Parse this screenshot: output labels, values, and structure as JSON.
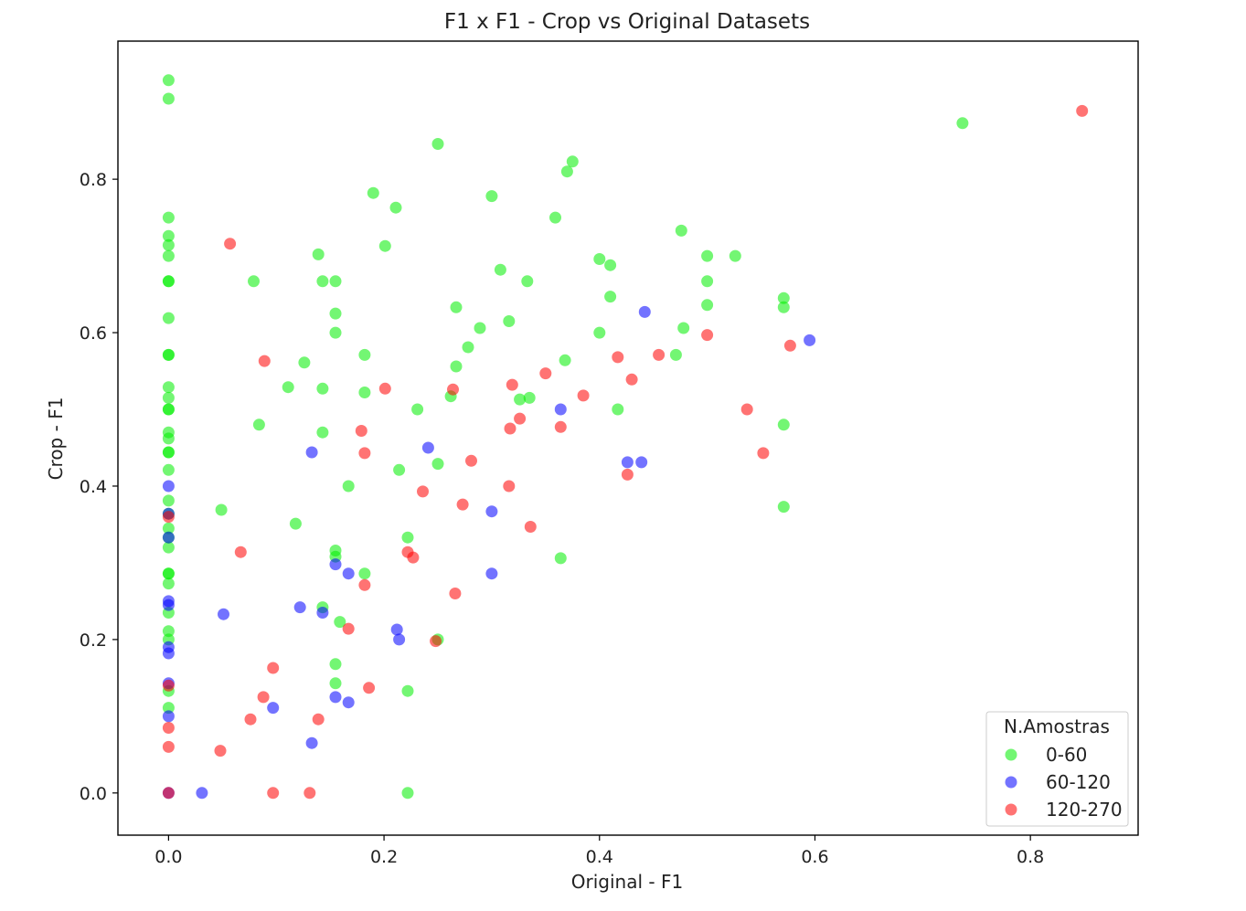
{
  "chart_data": {
    "type": "scatter",
    "title": "F1 x F1 - Crop vs Original Datasets",
    "xlabel": "Original - F1",
    "ylabel": "Crop - F1",
    "xlim": [
      -0.047,
      0.9
    ],
    "ylim": [
      -0.055,
      0.98
    ],
    "xticks": [
      "0.0",
      "0.2",
      "0.4",
      "0.6",
      "0.8"
    ],
    "yticks": [
      "0.0",
      "0.2",
      "0.4",
      "0.6",
      "0.8"
    ],
    "grid": false,
    "legend": {
      "title": "N.Amostras",
      "position": "lower-right"
    },
    "marker_opacity": 0.55,
    "series": [
      {
        "name": "0-60",
        "color": "#00ee00",
        "points": [
          [
            0.0,
            0.929
          ],
          [
            0.0,
            0.905
          ],
          [
            0.0,
            0.75
          ],
          [
            0.0,
            0.726
          ],
          [
            0.0,
            0.714
          ],
          [
            0.0,
            0.7
          ],
          [
            0.0,
            0.667
          ],
          [
            0.0,
            0.667
          ],
          [
            0.0,
            0.619
          ],
          [
            0.0,
            0.571
          ],
          [
            0.0,
            0.571
          ],
          [
            0.0,
            0.529
          ],
          [
            0.0,
            0.515
          ],
          [
            0.0,
            0.5
          ],
          [
            0.0,
            0.5
          ],
          [
            0.0,
            0.47
          ],
          [
            0.0,
            0.462
          ],
          [
            0.0,
            0.444
          ],
          [
            0.0,
            0.444
          ],
          [
            0.0,
            0.421
          ],
          [
            0.0,
            0.381
          ],
          [
            0.0,
            0.364
          ],
          [
            0.0,
            0.345
          ],
          [
            0.0,
            0.333
          ],
          [
            0.0,
            0.32
          ],
          [
            0.0,
            0.286
          ],
          [
            0.0,
            0.286
          ],
          [
            0.0,
            0.273
          ],
          [
            0.0,
            0.235
          ],
          [
            0.0,
            0.211
          ],
          [
            0.0,
            0.2
          ],
          [
            0.0,
            0.133
          ],
          [
            0.0,
            0.111
          ],
          [
            0.049,
            0.369
          ],
          [
            0.079,
            0.667
          ],
          [
            0.084,
            0.48
          ],
          [
            0.111,
            0.529
          ],
          [
            0.118,
            0.351
          ],
          [
            0.126,
            0.561
          ],
          [
            0.139,
            0.702
          ],
          [
            0.143,
            0.667
          ],
          [
            0.143,
            0.527
          ],
          [
            0.143,
            0.47
          ],
          [
            0.143,
            0.242
          ],
          [
            0.155,
            0.667
          ],
          [
            0.155,
            0.625
          ],
          [
            0.155,
            0.6
          ],
          [
            0.155,
            0.316
          ],
          [
            0.155,
            0.308
          ],
          [
            0.155,
            0.168
          ],
          [
            0.155,
            0.143
          ],
          [
            0.159,
            0.223
          ],
          [
            0.167,
            0.4
          ],
          [
            0.182,
            0.571
          ],
          [
            0.182,
            0.522
          ],
          [
            0.182,
            0.286
          ],
          [
            0.19,
            0.782
          ],
          [
            0.201,
            0.713
          ],
          [
            0.211,
            0.763
          ],
          [
            0.214,
            0.421
          ],
          [
            0.222,
            0.333
          ],
          [
            0.222,
            0.133
          ],
          [
            0.222,
            0.0
          ],
          [
            0.231,
            0.5
          ],
          [
            0.25,
            0.846
          ],
          [
            0.25,
            0.429
          ],
          [
            0.25,
            0.2
          ],
          [
            0.262,
            0.517
          ],
          [
            0.267,
            0.633
          ],
          [
            0.267,
            0.556
          ],
          [
            0.278,
            0.581
          ],
          [
            0.289,
            0.606
          ],
          [
            0.3,
            0.778
          ],
          [
            0.308,
            0.682
          ],
          [
            0.316,
            0.615
          ],
          [
            0.326,
            0.513
          ],
          [
            0.333,
            0.667
          ],
          [
            0.335,
            0.515
          ],
          [
            0.359,
            0.75
          ],
          [
            0.364,
            0.306
          ],
          [
            0.368,
            0.564
          ],
          [
            0.37,
            0.81
          ],
          [
            0.375,
            0.823
          ],
          [
            0.4,
            0.696
          ],
          [
            0.4,
            0.6
          ],
          [
            0.41,
            0.688
          ],
          [
            0.41,
            0.647
          ],
          [
            0.417,
            0.5
          ],
          [
            0.471,
            0.571
          ],
          [
            0.476,
            0.733
          ],
          [
            0.478,
            0.606
          ],
          [
            0.5,
            0.7
          ],
          [
            0.5,
            0.667
          ],
          [
            0.5,
            0.636
          ],
          [
            0.526,
            0.7
          ],
          [
            0.571,
            0.645
          ],
          [
            0.571,
            0.633
          ],
          [
            0.571,
            0.48
          ],
          [
            0.571,
            0.373
          ],
          [
            0.737,
            0.873
          ]
        ]
      },
      {
        "name": "60-120",
        "color": "#0000ff",
        "points": [
          [
            0.0,
            0.4
          ],
          [
            0.0,
            0.364
          ],
          [
            0.0,
            0.333
          ],
          [
            0.0,
            0.25
          ],
          [
            0.0,
            0.245
          ],
          [
            0.0,
            0.19
          ],
          [
            0.0,
            0.182
          ],
          [
            0.0,
            0.143
          ],
          [
            0.0,
            0.1
          ],
          [
            0.0,
            0.0
          ],
          [
            0.031,
            0.0
          ],
          [
            0.051,
            0.233
          ],
          [
            0.097,
            0.111
          ],
          [
            0.122,
            0.242
          ],
          [
            0.133,
            0.444
          ],
          [
            0.133,
            0.065
          ],
          [
            0.143,
            0.235
          ],
          [
            0.155,
            0.298
          ],
          [
            0.155,
            0.125
          ],
          [
            0.167,
            0.286
          ],
          [
            0.167,
            0.118
          ],
          [
            0.212,
            0.213
          ],
          [
            0.214,
            0.2
          ],
          [
            0.241,
            0.45
          ],
          [
            0.3,
            0.367
          ],
          [
            0.3,
            0.286
          ],
          [
            0.364,
            0.5
          ],
          [
            0.426,
            0.431
          ],
          [
            0.439,
            0.431
          ],
          [
            0.442,
            0.627
          ],
          [
            0.595,
            0.59
          ]
        ]
      },
      {
        "name": "120-270",
        "color": "#ff0000",
        "points": [
          [
            0.0,
            0.36
          ],
          [
            0.0,
            0.14
          ],
          [
            0.0,
            0.085
          ],
          [
            0.0,
            0.06
          ],
          [
            0.0,
            0.0
          ],
          [
            0.048,
            0.055
          ],
          [
            0.057,
            0.716
          ],
          [
            0.067,
            0.314
          ],
          [
            0.076,
            0.096
          ],
          [
            0.088,
            0.125
          ],
          [
            0.089,
            0.563
          ],
          [
            0.097,
            0.163
          ],
          [
            0.097,
            0.0
          ],
          [
            0.131,
            0.0
          ],
          [
            0.139,
            0.096
          ],
          [
            0.167,
            0.214
          ],
          [
            0.179,
            0.472
          ],
          [
            0.182,
            0.443
          ],
          [
            0.182,
            0.271
          ],
          [
            0.186,
            0.137
          ],
          [
            0.201,
            0.527
          ],
          [
            0.222,
            0.314
          ],
          [
            0.227,
            0.307
          ],
          [
            0.236,
            0.393
          ],
          [
            0.248,
            0.198
          ],
          [
            0.264,
            0.526
          ],
          [
            0.266,
            0.26
          ],
          [
            0.273,
            0.376
          ],
          [
            0.281,
            0.433
          ],
          [
            0.316,
            0.4
          ],
          [
            0.317,
            0.475
          ],
          [
            0.319,
            0.532
          ],
          [
            0.326,
            0.488
          ],
          [
            0.336,
            0.347
          ],
          [
            0.35,
            0.547
          ],
          [
            0.364,
            0.477
          ],
          [
            0.385,
            0.518
          ],
          [
            0.417,
            0.568
          ],
          [
            0.426,
            0.415
          ],
          [
            0.43,
            0.539
          ],
          [
            0.455,
            0.571
          ],
          [
            0.5,
            0.597
          ],
          [
            0.537,
            0.5
          ],
          [
            0.552,
            0.443
          ],
          [
            0.577,
            0.583
          ],
          [
            0.848,
            0.889
          ]
        ]
      }
    ]
  }
}
